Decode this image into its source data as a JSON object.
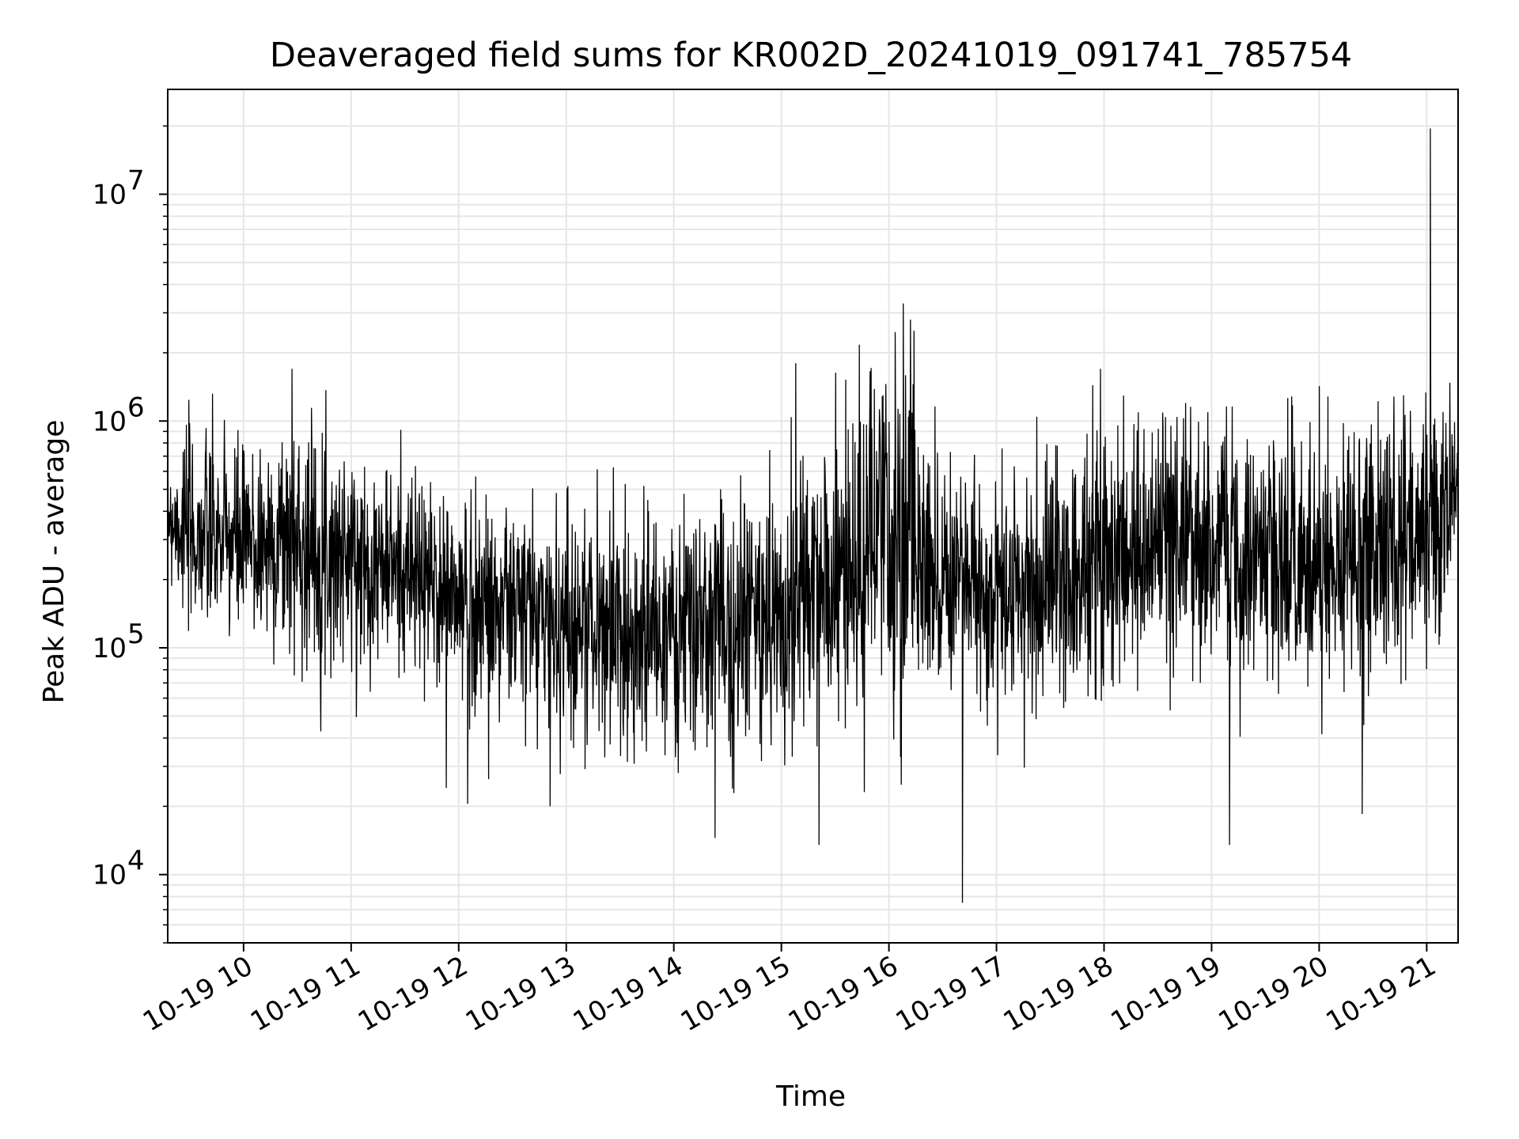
{
  "chart_data": {
    "type": "line",
    "title": "Deaveraged field sums for KR002D_20241019_091741_785754",
    "xlabel": "Time",
    "ylabel": "Peak ADU - average",
    "y_scale": "log",
    "ylim": [
      5000,
      29000000
    ],
    "xlim": [
      "2024-10-19 09:17:41",
      "2024-10-19 21:17:30"
    ],
    "grid": true,
    "line_color": "#000000",
    "grid_color": "#e6e6e6",
    "x_ticks": [
      {
        "t": "2024-10-19 10:00",
        "label": "10-19 10"
      },
      {
        "t": "2024-10-19 11:00",
        "label": "10-19 11"
      },
      {
        "t": "2024-10-19 12:00",
        "label": "10-19 12"
      },
      {
        "t": "2024-10-19 13:00",
        "label": "10-19 13"
      },
      {
        "t": "2024-10-19 14:00",
        "label": "10-19 14"
      },
      {
        "t": "2024-10-19 15:00",
        "label": "10-19 15"
      },
      {
        "t": "2024-10-19 16:00",
        "label": "10-19 16"
      },
      {
        "t": "2024-10-19 17:00",
        "label": "10-19 17"
      },
      {
        "t": "2024-10-19 18:00",
        "label": "10-19 18"
      },
      {
        "t": "2024-10-19 19:00",
        "label": "10-19 19"
      },
      {
        "t": "2024-10-19 20:00",
        "label": "10-19 20"
      },
      {
        "t": "2024-10-19 21:00",
        "label": "10-19 21"
      }
    ],
    "y_ticks": [
      {
        "value": 10000,
        "base": "10",
        "exp": "4"
      },
      {
        "value": 100000,
        "base": "10",
        "exp": "5"
      },
      {
        "value": 1000000,
        "base": "10",
        "exp": "6"
      },
      {
        "value": 10000000,
        "base": "10",
        "exp": "7"
      }
    ],
    "series": [
      {
        "x": [
          "2024-10-19 09:17:41",
          "2024-10-19 09:30",
          "2024-10-19 10:00",
          "2024-10-19 10:30",
          "2024-10-19 11:00",
          "2024-10-19 11:30",
          "2024-10-19 12:00",
          "2024-10-19 12:30",
          "2024-10-19 13:00",
          "2024-10-19 13:30",
          "2024-10-19 14:00",
          "2024-10-19 14:30",
          "2024-10-19 15:00",
          "2024-10-19 15:30",
          "2024-10-19 16:00",
          "2024-10-19 16:15",
          "2024-10-19 16:30",
          "2024-10-19 17:00",
          "2024-10-19 17:30",
          "2024-10-19 18:00",
          "2024-10-19 18:30",
          "2024-10-19 19:00",
          "2024-10-19 19:30",
          "2024-10-19 20:00",
          "2024-10-19 20:30",
          "2024-10-19 21:00",
          "2024-10-19 21:10",
          "2024-10-19 21:17:30"
        ],
        "y": [
          400000,
          320000,
          280000,
          300000,
          250000,
          220000,
          160000,
          150000,
          130000,
          120000,
          110000,
          130000,
          140000,
          200000,
          300000,
          280000,
          220000,
          160000,
          200000,
          250000,
          280000,
          300000,
          280000,
          250000,
          260000,
          350000,
          450000,
          500000
        ],
        "envelope_high": [
          1200000,
          1400000,
          1600000,
          1700000,
          1400000,
          1000000,
          800000,
          1050000,
          1000000,
          800000,
          950000,
          950000,
          1100000,
          1900000,
          3300000,
          2500000,
          1000000,
          800000,
          1500000,
          1700000,
          1400000,
          1300000,
          1300000,
          1600000,
          1400000,
          1500000,
          19500000,
          900000
        ],
        "envelope_low": [
          150000,
          55000,
          60000,
          38000,
          50000,
          45000,
          20000,
          30000,
          20000,
          19000,
          25000,
          14000,
          16000,
          13000,
          7500,
          22000,
          30000,
          25000,
          30000,
          18000,
          22000,
          13000,
          25000,
          30000,
          18000,
          30000,
          180000,
          350000
        ],
        "spikes": [
          {
            "t": "2024-10-19 21:02",
            "y": 19500000
          },
          {
            "t": "2024-10-19 16:08",
            "y": 3300000
          },
          {
            "t": "2024-10-19 16:12",
            "y": 2800000
          },
          {
            "t": "2024-10-19 16:14",
            "y": 2500000
          },
          {
            "t": "2024-10-19 15:08",
            "y": 1800000
          },
          {
            "t": "2024-10-19 10:27",
            "y": 1700000
          },
          {
            "t": "2024-10-19 17:58",
            "y": 1700000
          },
          {
            "t": "2024-10-19 16:41",
            "y": 7500
          },
          {
            "t": "2024-10-19 15:21",
            "y": 13500
          },
          {
            "t": "2024-10-19 19:10",
            "y": 13500
          },
          {
            "t": "2024-10-19 14:23",
            "y": 14500
          },
          {
            "t": "2024-10-19 12:05",
            "y": 20500
          },
          {
            "t": "2024-10-19 12:51",
            "y": 20000
          },
          {
            "t": "2024-10-19 20:24",
            "y": 18500
          }
        ]
      }
    ]
  }
}
